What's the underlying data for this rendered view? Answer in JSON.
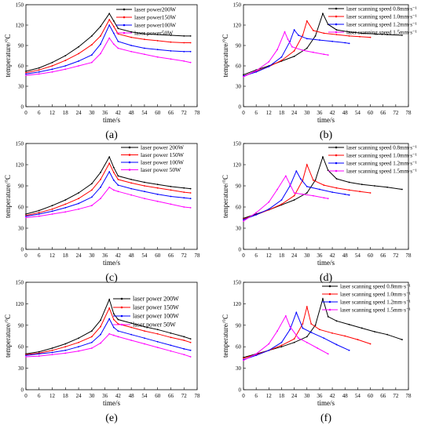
{
  "chart_data": [
    {
      "panel": "(a)",
      "type": "line",
      "xlabel": "time/s",
      "ylabel": "temperature/°C",
      "xlim": [
        0,
        78
      ],
      "ylim": [
        0,
        150
      ],
      "xticks": [
        0,
        6,
        12,
        18,
        24,
        30,
        36,
        42,
        48,
        54,
        60,
        66,
        72,
        78
      ],
      "yticks": [
        0,
        30,
        60,
        90,
        120,
        150
      ],
      "legend_position": "top-right",
      "series": [
        {
          "name": "laser power200W",
          "color": "#000000",
          "x": [
            0,
            6,
            12,
            18,
            24,
            30,
            34,
            38,
            40,
            42,
            48,
            54,
            60,
            66,
            72,
            75
          ],
          "y": [
            52,
            57,
            65,
            75,
            88,
            104,
            118,
            137,
            126,
            115,
            110,
            107,
            106,
            105,
            104,
            104
          ]
        },
        {
          "name": "laser power150W",
          "color": "#ff0000",
          "x": [
            0,
            6,
            12,
            18,
            24,
            30,
            34,
            38,
            40,
            42,
            48,
            54,
            60,
            66,
            72,
            75
          ],
          "y": [
            50,
            54,
            60,
            68,
            78,
            91,
            104,
            128,
            118,
            107,
            102,
            99,
            97,
            95,
            94,
            94
          ]
        },
        {
          "name": "laser power100W",
          "color": "#0000ff",
          "x": [
            0,
            6,
            12,
            18,
            24,
            30,
            34,
            38,
            40,
            42,
            48,
            54,
            60,
            66,
            72,
            75
          ],
          "y": [
            48,
            51,
            55,
            60,
            67,
            76,
            92,
            120,
            108,
            96,
            90,
            86,
            84,
            82,
            81,
            81
          ]
        },
        {
          "name": "laser power50W",
          "color": "#ff00ff",
          "x": [
            0,
            6,
            12,
            18,
            24,
            30,
            34,
            38,
            40,
            42,
            48,
            54,
            60,
            66,
            72,
            75
          ],
          "y": [
            46,
            48,
            51,
            55,
            60,
            65,
            78,
            101,
            92,
            86,
            81,
            77,
            73,
            70,
            67,
            65
          ]
        }
      ]
    },
    {
      "panel": "(b)",
      "type": "line",
      "xlabel": "time/s",
      "ylabel": "temperature/°C",
      "xlim": [
        0,
        78
      ],
      "ylim": [
        0,
        150
      ],
      "xticks": [
        0,
        6,
        12,
        18,
        24,
        30,
        36,
        42,
        48,
        54,
        60,
        66,
        72,
        78
      ],
      "yticks": [
        0,
        30,
        60,
        90,
        120,
        150
      ],
      "legend_position": "top-right",
      "series": [
        {
          "name": "laser scanning speed 0.8mm·s⁻¹",
          "color": "#000000",
          "x": [
            0,
            6,
            12,
            18,
            24,
            30,
            34,
            37.5,
            40,
            44,
            50,
            56,
            62,
            68,
            75
          ],
          "y": [
            47,
            54,
            60,
            67,
            74,
            86,
            104,
            137,
            121,
            113,
            110,
            108,
            107,
            106,
            105
          ]
        },
        {
          "name": "laser scanning speed 1.0mm·s⁻¹",
          "color": "#ff0000",
          "x": [
            0,
            6,
            12,
            18,
            24,
            28,
            30,
            33,
            38,
            44,
            50,
            55,
            60
          ],
          "y": [
            45,
            52,
            59,
            68,
            82,
            105,
            126,
            112,
            108,
            106,
            104,
            103,
            102
          ]
        },
        {
          "name": "laser scanning speed 1.2mm·s⁻¹",
          "color": "#0000ff",
          "x": [
            0,
            6,
            12,
            18,
            22,
            24,
            26,
            30,
            36,
            42,
            48,
            50
          ],
          "y": [
            45,
            51,
            59,
            73,
            96,
            113,
            105,
            100,
            98,
            96,
            94,
            93
          ]
        },
        {
          "name": "laser scanning speed 1.5mm·s⁻¹",
          "color": "#ff00ff",
          "x": [
            0,
            6,
            12,
            16,
            19.5,
            21,
            23,
            28,
            33,
            38,
            40
          ],
          "y": [
            44,
            53,
            66,
            84,
            110,
            99,
            88,
            83,
            80,
            77,
            76
          ]
        }
      ]
    },
    {
      "panel": "(c)",
      "type": "line",
      "xlabel": "time/s",
      "ylabel": "temperature/°C",
      "xlim": [
        0,
        78
      ],
      "ylim": [
        0,
        150
      ],
      "xticks": [
        0,
        6,
        12,
        18,
        24,
        30,
        36,
        42,
        48,
        54,
        60,
        66,
        72,
        78
      ],
      "yticks": [
        0,
        30,
        60,
        90,
        120,
        150
      ],
      "legend_position": "top-right",
      "series": [
        {
          "name": "laser power 200W",
          "color": "#000000",
          "x": [
            0,
            6,
            12,
            18,
            24,
            30,
            34,
            38,
            40,
            42,
            48,
            54,
            60,
            66,
            72,
            75
          ],
          "y": [
            50,
            55,
            62,
            70,
            80,
            93,
            109,
            131,
            116,
            104,
            99,
            95,
            92,
            89,
            87,
            86
          ]
        },
        {
          "name": "laser power 150W",
          "color": "#ff0000",
          "x": [
            0,
            6,
            12,
            18,
            24,
            30,
            34,
            38,
            40,
            42,
            48,
            54,
            60,
            66,
            72,
            75
          ],
          "y": [
            48,
            52,
            57,
            64,
            72,
            84,
            99,
            122,
            109,
            99,
            94,
            90,
            87,
            84,
            81,
            80
          ]
        },
        {
          "name": "laser power 100W",
          "color": "#0000ff",
          "x": [
            0,
            6,
            12,
            18,
            24,
            30,
            34,
            38,
            40,
            42,
            48,
            54,
            60,
            66,
            72,
            75
          ],
          "y": [
            47,
            50,
            54,
            59,
            65,
            74,
            88,
            110,
            98,
            91,
            86,
            82,
            78,
            75,
            73,
            72
          ]
        },
        {
          "name": "laser power 50W",
          "color": "#ff00ff",
          "x": [
            0,
            6,
            12,
            18,
            24,
            30,
            34,
            38,
            40,
            42,
            48,
            54,
            60,
            66,
            72,
            75
          ],
          "y": [
            45,
            47,
            50,
            53,
            57,
            62,
            72,
            88,
            84,
            82,
            77,
            72,
            68,
            64,
            60,
            59
          ]
        }
      ]
    },
    {
      "panel": "(d)",
      "type": "line",
      "xlabel": "time/s",
      "ylabel": "temperature/°C",
      "xlim": [
        0,
        78
      ],
      "ylim": [
        0,
        150
      ],
      "xticks": [
        0,
        6,
        12,
        18,
        24,
        30,
        36,
        42,
        48,
        54,
        60,
        66,
        72,
        78
      ],
      "yticks": [
        0,
        30,
        60,
        90,
        120,
        150
      ],
      "legend_position": "top-right",
      "series": [
        {
          "name": "laser scanning speed 0.8mm·s⁻¹",
          "color": "#000000",
          "x": [
            0,
            6,
            12,
            18,
            24,
            30,
            34,
            37.5,
            40,
            44,
            50,
            56,
            62,
            68,
            75
          ],
          "y": [
            44,
            50,
            56,
            63,
            70,
            80,
            98,
            131,
            112,
            100,
            95,
            92,
            90,
            88,
            85
          ]
        },
        {
          "name": "laser scanning speed 1.0mm·s⁻¹",
          "color": "#ff0000",
          "x": [
            0,
            6,
            12,
            18,
            24,
            28,
            30,
            33,
            38,
            44,
            50,
            55,
            60
          ],
          "y": [
            43,
            49,
            56,
            64,
            76,
            98,
            120,
            98,
            91,
            87,
            84,
            82,
            80
          ]
        },
        {
          "name": "laser scanning speed 1.2mm·s⁻¹",
          "color": "#0000ff",
          "x": [
            0,
            6,
            12,
            18,
            22,
            25,
            27,
            30,
            36,
            42,
            48,
            50
          ],
          "y": [
            42,
            49,
            57,
            70,
            90,
            111,
            100,
            89,
            85,
            81,
            78,
            77
          ]
        },
        {
          "name": "laser scanning speed 1.5mm·s⁻¹",
          "color": "#ff00ff",
          "x": [
            0,
            6,
            12,
            16,
            20,
            22,
            24,
            28,
            33,
            38,
            40
          ],
          "y": [
            40,
            52,
            67,
            85,
            104,
            92,
            80,
            78,
            76,
            73,
            72
          ]
        }
      ]
    },
    {
      "panel": "(e)",
      "type": "line",
      "xlabel": "time/s",
      "ylabel": "temperature/°C",
      "xlim": [
        0,
        78
      ],
      "ylim": [
        0,
        150
      ],
      "xticks": [
        0,
        6,
        12,
        18,
        24,
        30,
        36,
        42,
        48,
        54,
        60,
        66,
        72,
        78
      ],
      "yticks": [
        0,
        30,
        60,
        90,
        120,
        150
      ],
      "legend_position": "top-right",
      "series": [
        {
          "name": "laser power 200W",
          "color": "#000000",
          "x": [
            0,
            6,
            12,
            18,
            24,
            30,
            34,
            38,
            40,
            42,
            48,
            54,
            60,
            66,
            72,
            75
          ],
          "y": [
            50,
            53,
            58,
            64,
            72,
            82,
            97,
            126,
            106,
            98,
            93,
            88,
            84,
            79,
            74,
            71
          ]
        },
        {
          "name": "laser power 150W",
          "color": "#ff0000",
          "x": [
            0,
            6,
            12,
            18,
            24,
            30,
            34,
            38,
            40,
            42,
            48,
            54,
            60,
            66,
            72,
            75
          ],
          "y": [
            49,
            51,
            55,
            60,
            66,
            74,
            88,
            114,
            98,
            92,
            87,
            82,
            78,
            73,
            69,
            66
          ]
        },
        {
          "name": "laser power 100W",
          "color": "#0000ff",
          "x": [
            0,
            6,
            12,
            18,
            24,
            30,
            34,
            38,
            40,
            42,
            48,
            54,
            60,
            66,
            72,
            75
          ],
          "y": [
            48,
            50,
            52,
            55,
            60,
            66,
            77,
            99,
            87,
            82,
            77,
            72,
            67,
            62,
            57,
            55
          ]
        },
        {
          "name": "laser power 50W",
          "color": "#ff00ff",
          "x": [
            0,
            6,
            12,
            18,
            24,
            30,
            34,
            38,
            40,
            42,
            48,
            54,
            60,
            66,
            72,
            75
          ],
          "y": [
            46,
            47,
            49,
            51,
            54,
            58,
            65,
            78,
            76,
            74,
            69,
            64,
            59,
            54,
            49,
            46
          ]
        }
      ]
    },
    {
      "panel": "(f)",
      "type": "line",
      "xlabel": "time/s",
      "ylabel": "temperature/°C",
      "xlim": [
        0,
        78
      ],
      "ylim": [
        0,
        150
      ],
      "xticks": [
        0,
        6,
        12,
        18,
        24,
        30,
        36,
        42,
        48,
        54,
        60,
        66,
        72,
        78
      ],
      "yticks": [
        0,
        30,
        60,
        90,
        120,
        150
      ],
      "legend_position": "top-right",
      "series": [
        {
          "name": "laser scanning speed 0.8mm·s⁻¹",
          "color": "#000000",
          "x": [
            0,
            6,
            12,
            18,
            24,
            30,
            34,
            37.5,
            40,
            44,
            50,
            56,
            62,
            68,
            75
          ],
          "y": [
            45,
            50,
            55,
            60,
            66,
            74,
            90,
            127,
            102,
            96,
            91,
            86,
            81,
            77,
            70
          ]
        },
        {
          "name": "laser scanning speed 1.0mm·s⁻¹",
          "color": "#ff0000",
          "x": [
            0,
            6,
            12,
            18,
            24,
            28,
            30,
            32,
            36,
            42,
            48,
            54,
            60
          ],
          "y": [
            44,
            49,
            55,
            62,
            71,
            92,
            116,
            92,
            84,
            79,
            75,
            70,
            64
          ]
        },
        {
          "name": "laser scanning speed 1.2mm·s⁻¹",
          "color": "#0000ff",
          "x": [
            0,
            6,
            12,
            18,
            22,
            25,
            28,
            32,
            38,
            44,
            50
          ],
          "y": [
            42,
            48,
            55,
            66,
            84,
            108,
            86,
            80,
            72,
            63,
            55
          ]
        },
        {
          "name": "laser scanning speed 1.5mm·s⁻¹",
          "color": "#ff00ff",
          "x": [
            0,
            6,
            12,
            16,
            20,
            22,
            26,
            30,
            35,
            40
          ],
          "y": [
            41,
            50,
            64,
            82,
            103,
            88,
            72,
            66,
            58,
            50
          ]
        }
      ]
    }
  ]
}
